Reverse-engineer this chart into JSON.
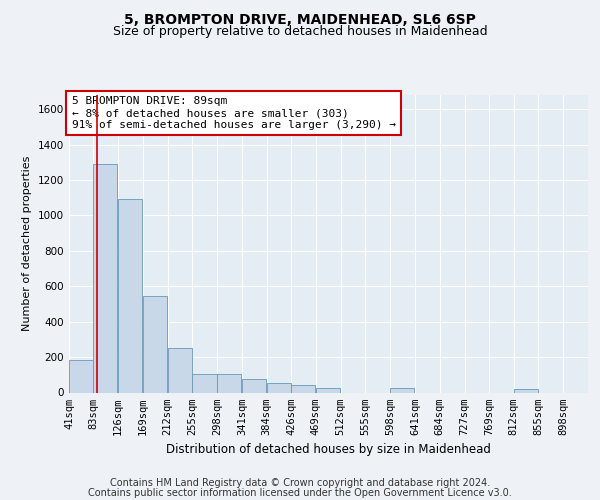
{
  "title1": "5, BROMPTON DRIVE, MAIDENHEAD, SL6 6SP",
  "title2": "Size of property relative to detached houses in Maidenhead",
  "xlabel": "Distribution of detached houses by size in Maidenhead",
  "ylabel": "Number of detached properties",
  "footer1": "Contains HM Land Registry data © Crown copyright and database right 2024.",
  "footer2": "Contains public sector information licensed under the Open Government Licence v3.0.",
  "annotation_title": "5 BROMPTON DRIVE: 89sqm",
  "annotation_line1": "← 8% of detached houses are smaller (303)",
  "annotation_line2": "91% of semi-detached houses are larger (3,290) →",
  "bar_color": "#c8d8e8",
  "bar_edge_color": "#6699bb",
  "redline_x": 89,
  "redline_color": "#cc0000",
  "categories": [
    "41sqm",
    "83sqm",
    "126sqm",
    "169sqm",
    "212sqm",
    "255sqm",
    "298sqm",
    "341sqm",
    "384sqm",
    "426sqm",
    "469sqm",
    "512sqm",
    "555sqm",
    "598sqm",
    "641sqm",
    "684sqm",
    "727sqm",
    "769sqm",
    "812sqm",
    "855sqm",
    "898sqm"
  ],
  "bin_edges": [
    41,
    83,
    126,
    169,
    212,
    255,
    298,
    341,
    384,
    426,
    469,
    512,
    555,
    598,
    641,
    684,
    727,
    769,
    812,
    855,
    898,
    941
  ],
  "values": [
    185,
    1290,
    1095,
    545,
    250,
    105,
    105,
    75,
    55,
    40,
    25,
    0,
    0,
    25,
    0,
    0,
    0,
    0,
    20,
    0,
    0
  ],
  "ylim": [
    0,
    1680
  ],
  "yticks": [
    0,
    200,
    400,
    600,
    800,
    1000,
    1200,
    1400,
    1600
  ],
  "background_color": "#eef2f7",
  "plot_bg_color": "#e4ecf4",
  "grid_color": "#ffffff",
  "title1_fontsize": 10,
  "title2_fontsize": 9,
  "xlabel_fontsize": 8.5,
  "ylabel_fontsize": 8,
  "tick_fontsize": 7.5,
  "footer_fontsize": 7,
  "ann_fontsize": 8
}
